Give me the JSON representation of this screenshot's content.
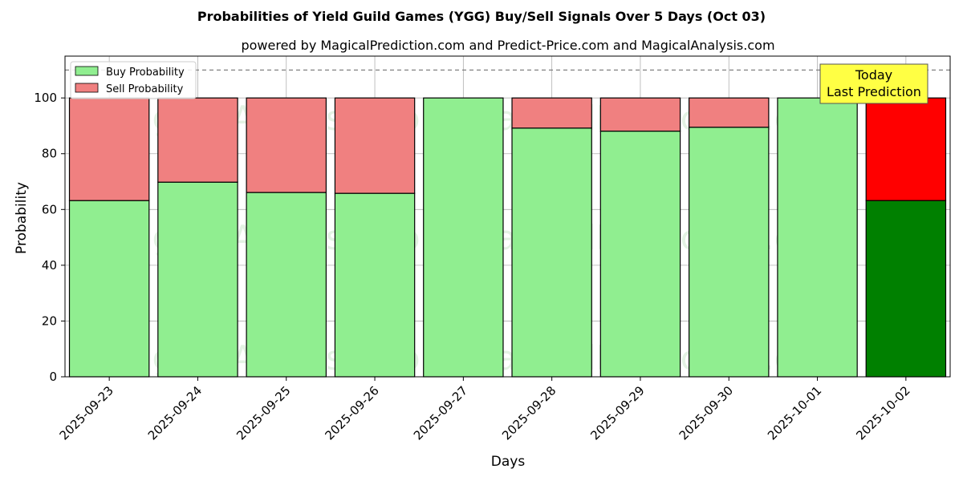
{
  "chart_data": {
    "type": "bar",
    "stacked": true,
    "title": "Probabilities of Yield Guild Games (YGG) Buy/Sell Signals Over 5 Days (Oct 03)",
    "subtitle": "powered by MagicalPrediction.com and Predict-Price.com and MagicalAnalysis.com",
    "xlabel": "Days",
    "ylabel": "Probability",
    "ylim": [
      0,
      115
    ],
    "yticks": [
      0,
      20,
      40,
      60,
      80,
      100
    ],
    "reference_line": 110,
    "grid": true,
    "legend_position": "top-left",
    "categories": [
      "2025-09-23",
      "2025-09-24",
      "2025-09-25",
      "2025-09-26",
      "2025-09-27",
      "2025-09-28",
      "2025-09-29",
      "2025-09-30",
      "2025-10-01",
      "2025-10-02"
    ],
    "series": [
      {
        "name": "Buy Probability",
        "color": "#90ee90",
        "values": [
          63.2,
          69.8,
          66.1,
          65.8,
          100.0,
          89.2,
          88.1,
          89.5,
          100.0,
          63.2
        ]
      },
      {
        "name": "Sell Probability",
        "color": "#f08080",
        "values": [
          36.8,
          30.2,
          33.9,
          34.2,
          0.0,
          10.8,
          11.9,
          10.5,
          0.0,
          36.8
        ]
      }
    ],
    "highlight": {
      "index": 9,
      "buy_color": "#008000",
      "sell_color": "#ff0000"
    },
    "annotation": {
      "lines": [
        "Today",
        "Last Prediction"
      ],
      "bg_color": "#ffff44"
    },
    "watermarks": [
      "MagicalAnalysis.com",
      "MagicalPrediction.com"
    ]
  }
}
